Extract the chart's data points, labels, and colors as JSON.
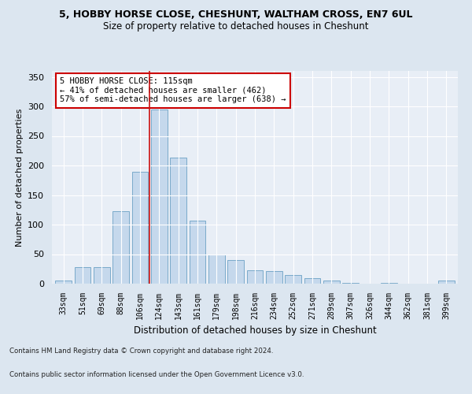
{
  "title1": "5, HOBBY HORSE CLOSE, CHESHUNT, WALTHAM CROSS, EN7 6UL",
  "title2": "Size of property relative to detached houses in Cheshunt",
  "xlabel": "Distribution of detached houses by size in Cheshunt",
  "ylabel": "Number of detached properties",
  "categories": [
    "33sqm",
    "51sqm",
    "69sqm",
    "88sqm",
    "106sqm",
    "124sqm",
    "143sqm",
    "161sqm",
    "179sqm",
    "198sqm",
    "216sqm",
    "234sqm",
    "252sqm",
    "271sqm",
    "289sqm",
    "307sqm",
    "326sqm",
    "344sqm",
    "362sqm",
    "381sqm",
    "399sqm"
  ],
  "values": [
    5,
    28,
    28,
    123,
    190,
    295,
    213,
    107,
    50,
    40,
    23,
    22,
    15,
    10,
    5,
    2,
    0,
    2,
    0,
    0,
    5
  ],
  "bar_color": "#c5d8ec",
  "bar_edge_color": "#7aaaca",
  "vline_x": 4.5,
  "vline_color": "#cc1111",
  "annotation_text": "5 HOBBY HORSE CLOSE: 115sqm\n← 41% of detached houses are smaller (462)\n57% of semi-detached houses are larger (638) →",
  "annotation_box_color": "#ffffff",
  "annotation_box_edge": "#cc0000",
  "ylim": [
    0,
    360
  ],
  "yticks": [
    0,
    50,
    100,
    150,
    200,
    250,
    300,
    350
  ],
  "footnote1": "Contains HM Land Registry data © Crown copyright and database right 2024.",
  "footnote2": "Contains public sector information licensed under the Open Government Licence v3.0.",
  "bg_color": "#dce6f0",
  "plot_bg_color": "#e8eef6"
}
